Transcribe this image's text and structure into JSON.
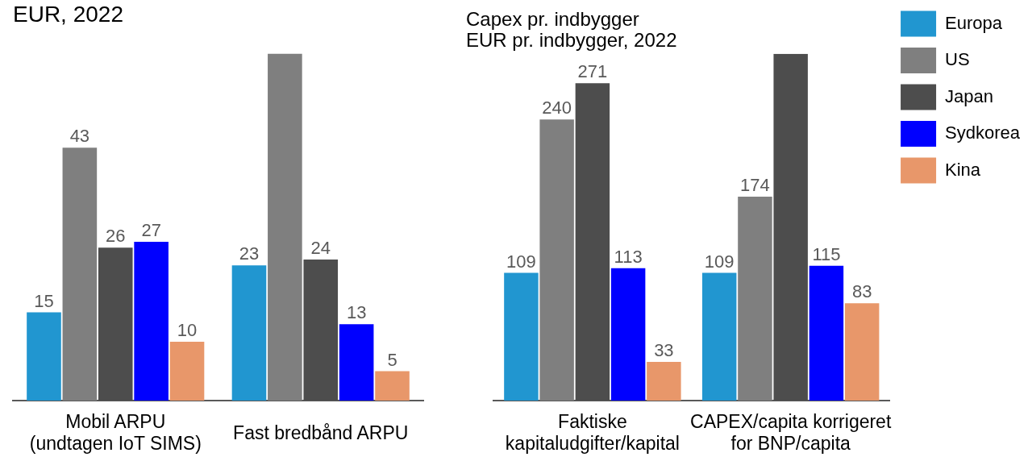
{
  "chart_data": [
    {
      "type": "bar",
      "subtitle": "EUR, 2022",
      "categories": [
        "Mobil ARPU\n(undtagen IoT SIMS)",
        "Fast bredbånd ARPU"
      ],
      "ylim": [
        0,
        59
      ],
      "series": [
        {
          "color": "#2196d0",
          "values": [
            15,
            23
          ],
          "value_labels": [
            "15",
            "23"
          ]
        },
        {
          "color": "#7f7f7f",
          "values": [
            43,
            59
          ],
          "value_labels": [
            "43",
            null
          ]
        },
        {
          "color": "#4d4d4d",
          "values": [
            26,
            24
          ],
          "value_labels": [
            "26",
            "24"
          ]
        },
        {
          "color": "#0000ff",
          "values": [
            27,
            13
          ],
          "value_labels": [
            "27",
            "13"
          ]
        },
        {
          "color": "#e8976a",
          "values": [
            10,
            5
          ],
          "value_labels": [
            "10",
            "5"
          ]
        }
      ]
    },
    {
      "type": "bar",
      "title": "Capex pr. indbygger",
      "subtitle": "EUR pr. indbygger, 2022",
      "categories": [
        "Faktiske\nkapitaludgifter/kapital",
        "CAPEX/capita korrigeret\nfor BNP/capita"
      ],
      "ylim": [
        0,
        296
      ],
      "legend": "top right",
      "series": [
        {
          "name": "Europa",
          "color": "#2196d0",
          "values": [
            109,
            109
          ],
          "value_labels": [
            "109",
            "109"
          ]
        },
        {
          "name": "US",
          "color": "#7f7f7f",
          "values": [
            240,
            174
          ],
          "value_labels": [
            "240",
            "174"
          ]
        },
        {
          "name": "Japan",
          "color": "#4d4d4d",
          "values": [
            271,
            296
          ],
          "value_labels": [
            "271",
            null
          ]
        },
        {
          "name": "Sydkorea",
          "color": "#0000ff",
          "values": [
            113,
            115
          ],
          "value_labels": [
            "113",
            "115"
          ]
        },
        {
          "name": "Kina",
          "color": "#e8976a",
          "values": [
            33,
            83
          ],
          "value_labels": [
            "33",
            "83"
          ]
        }
      ]
    }
  ]
}
